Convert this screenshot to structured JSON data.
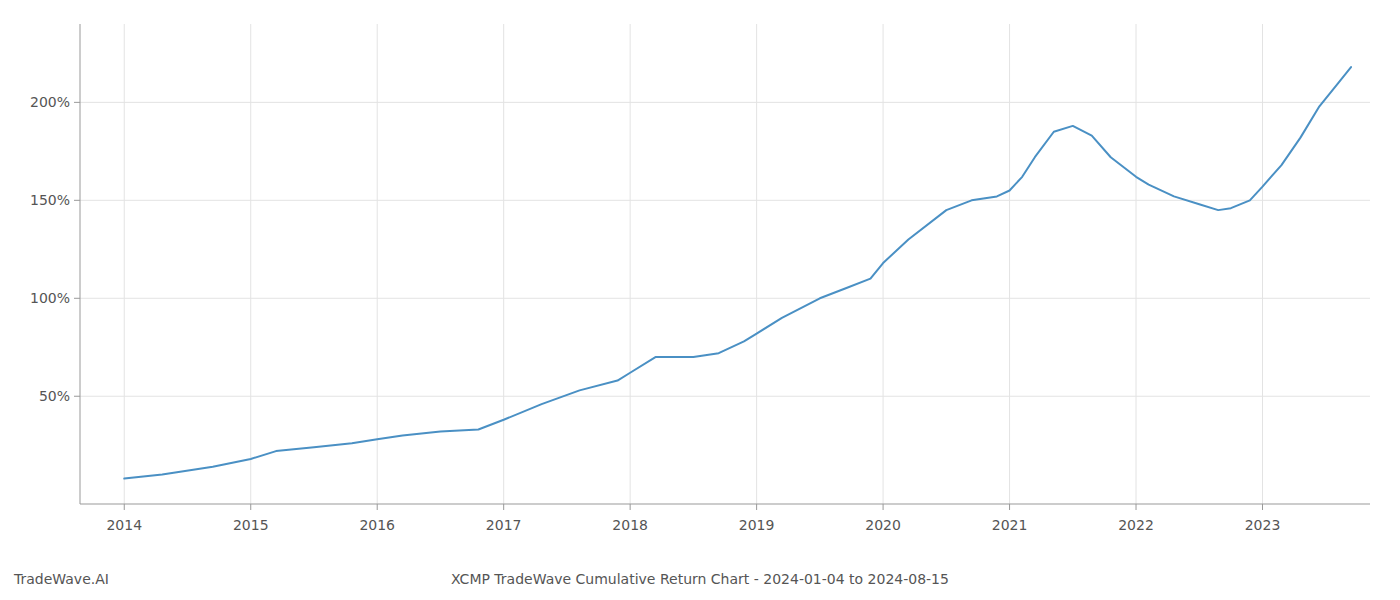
{
  "chart_data": {
    "type": "line",
    "title": "XCMP TradeWave Cumulative Return Chart - 2024-01-04 to 2024-08-15",
    "annotations": [
      "TradeWave.AI"
    ],
    "color": "#4a90c4",
    "grid": true,
    "x": [
      2014.0,
      2014.3,
      2014.7,
      2015.0,
      2015.2,
      2015.5,
      2015.8,
      2016.0,
      2016.2,
      2016.5,
      2016.8,
      2017.0,
      2017.3,
      2017.6,
      2017.9,
      2018.0,
      2018.2,
      2018.5,
      2018.7,
      2018.9,
      2019.0,
      2019.2,
      2019.5,
      2019.7,
      2019.9,
      2020.0,
      2020.2,
      2020.5,
      2020.7,
      2020.9,
      2021.0,
      2021.1,
      2021.2,
      2021.35,
      2021.5,
      2021.65,
      2021.8,
      2022.0,
      2022.1,
      2022.3,
      2022.5,
      2022.65,
      2022.75,
      2022.9,
      2023.0,
      2023.15,
      2023.3,
      2023.45,
      2023.6,
      2023.7
    ],
    "values": [
      8,
      10,
      14,
      18,
      22,
      24,
      26,
      28,
      30,
      32,
      33,
      38,
      46,
      53,
      58,
      62,
      70,
      70,
      72,
      78,
      82,
      90,
      100,
      105,
      110,
      118,
      130,
      145,
      150,
      152,
      155,
      162,
      172,
      185,
      188,
      183,
      172,
      162,
      158,
      152,
      148,
      145,
      146,
      150,
      157,
      168,
      182,
      198,
      210,
      218
    ],
    "xlim": [
      2013.65,
      2023.85
    ],
    "xticks": [
      2014,
      2015,
      2016,
      2017,
      2018,
      2019,
      2020,
      2021,
      2022,
      2023
    ],
    "ylim": [
      -5,
      240
    ],
    "yticks": [
      {
        "value": 50,
        "label": "50%"
      },
      {
        "value": 100,
        "label": "100%"
      },
      {
        "value": 150,
        "label": "150%"
      },
      {
        "value": 200,
        "label": "200%"
      }
    ]
  }
}
